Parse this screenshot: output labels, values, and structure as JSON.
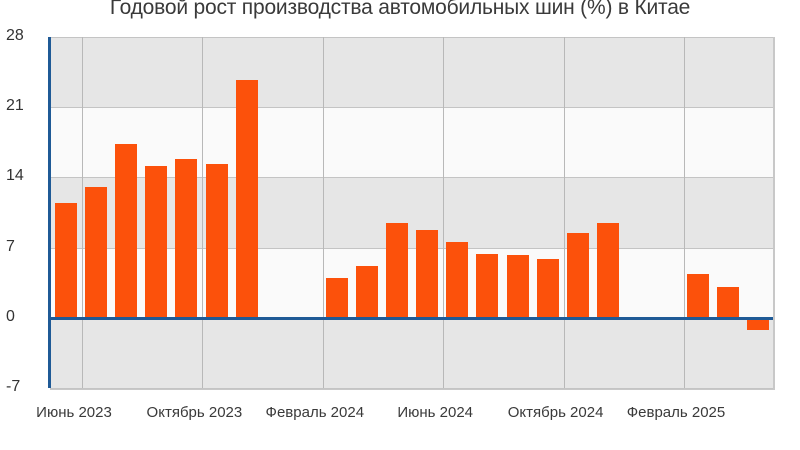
{
  "chart_data": {
    "type": "bar",
    "title": "Годовой рост производства автомобильных шин (%) в Китае",
    "xlabel": "",
    "ylabel": "",
    "ylim": [
      -7,
      28
    ],
    "yticks": [
      28,
      21,
      14,
      7,
      0,
      -7
    ],
    "grid": true,
    "legend": null,
    "x_tick_labels": [
      "Июнь 2023",
      "Октябрь 2023",
      "Февраль 2024",
      "Июнь 2024",
      "Октябрь 2024",
      "Февраль 2025"
    ],
    "categories": [
      "2023-06",
      "2023-07",
      "2023-08",
      "2023-09",
      "2023-10",
      "2023-11",
      "2023-12",
      "2024-01",
      "2024-02",
      "2024-03",
      "2024-04",
      "2024-05",
      "2024-06",
      "2024-07",
      "2024-08",
      "2024-09",
      "2024-10",
      "2024-11",
      "2024-12",
      "2025-01",
      "2025-02",
      "2025-03",
      "2025-04",
      "2025-05"
    ],
    "values": [
      11.4,
      13.0,
      17.3,
      15.1,
      15.8,
      15.3,
      23.7,
      null,
      null,
      4.0,
      5.2,
      9.5,
      8.8,
      7.6,
      6.4,
      6.3,
      5.9,
      8.5,
      9.5,
      null,
      null,
      4.4,
      3.1,
      -1.2
    ],
    "bar_color": "#fc510b",
    "axis_color": "#1f5a96"
  }
}
